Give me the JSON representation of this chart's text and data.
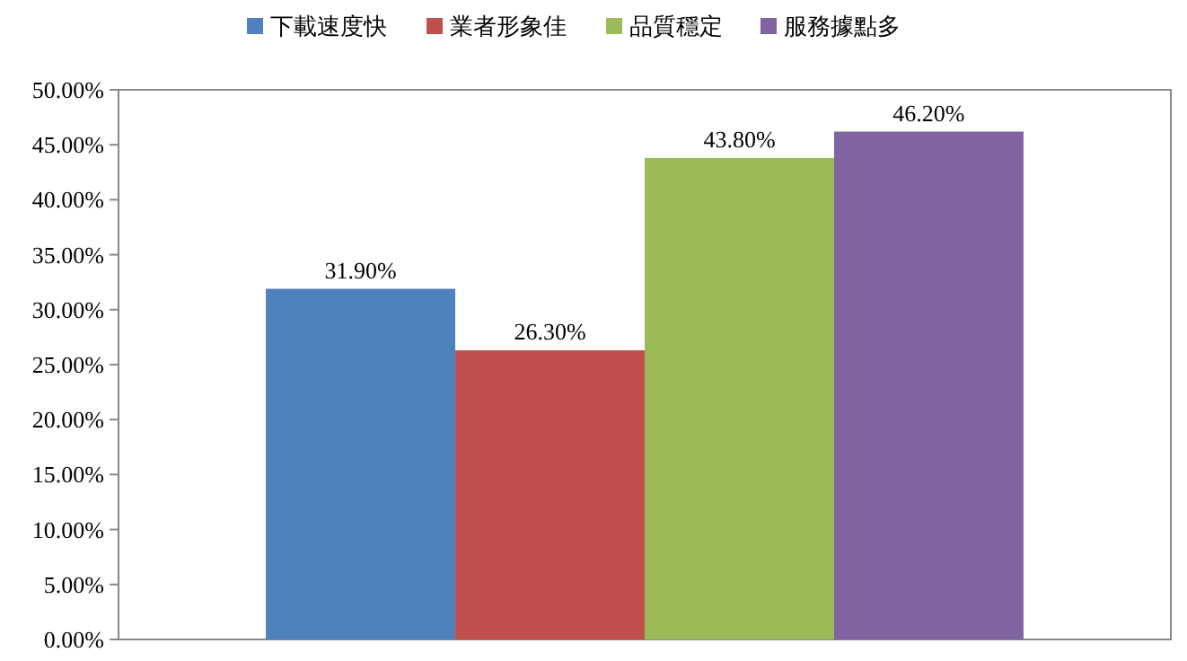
{
  "chart_data": {
    "type": "bar",
    "categories": [
      null
    ],
    "series": [
      {
        "name": "下載速度快",
        "color": "#4f81bd",
        "values": [
          31.9
        ],
        "value_labels": [
          "31.90%"
        ]
      },
      {
        "name": "業者形象佳",
        "color": "#c0504d",
        "values": [
          26.3
        ],
        "value_labels": [
          "26.30%"
        ]
      },
      {
        "name": "品質穩定",
        "color": "#9bbb59",
        "values": [
          43.8
        ],
        "value_labels": [
          "43.80%"
        ]
      },
      {
        "name": "服務據點多",
        "color": "#8064a2",
        "values": [
          46.2
        ],
        "value_labels": [
          "46.20%"
        ]
      }
    ],
    "ylim": [
      0,
      50
    ],
    "yticks": [
      {
        "value": 0,
        "label": "0.00%"
      },
      {
        "value": 5,
        "label": "5.00%"
      },
      {
        "value": 10,
        "label": "10.00%"
      },
      {
        "value": 15,
        "label": "15.00%"
      },
      {
        "value": 20,
        "label": "20.00%"
      },
      {
        "value": 25,
        "label": "25.00%"
      },
      {
        "value": 30,
        "label": "30.00%"
      },
      {
        "value": 35,
        "label": "35.00%"
      },
      {
        "value": 40,
        "label": "40.00%"
      },
      {
        "value": 45,
        "label": "45.00%"
      },
      {
        "value": 50,
        "label": "50.00%"
      }
    ],
    "legend": "top"
  }
}
